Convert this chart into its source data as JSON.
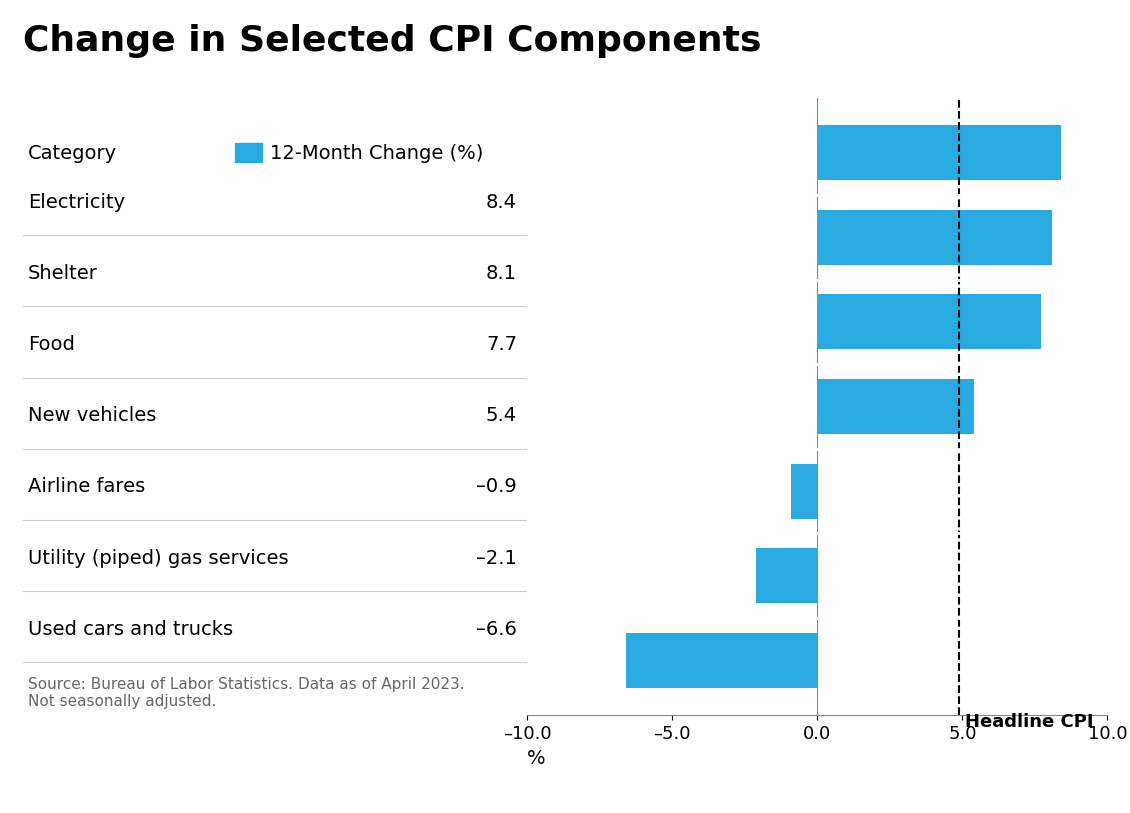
{
  "title": "Change in Selected CPI Components",
  "categories": [
    "Electricity",
    "Shelter",
    "Food",
    "New vehicles",
    "Airline fares",
    "Utility (piped) gas services",
    "Used cars and trucks"
  ],
  "values": [
    8.4,
    8.1,
    7.7,
    5.4,
    -0.9,
    -2.1,
    -6.6
  ],
  "bar_color": "#29ABE2",
  "headline_cpi": 4.9,
  "xlim": [
    -10.0,
    10.0
  ],
  "xticks": [
    -10.0,
    -5.0,
    0.0,
    5.0,
    10.0
  ],
  "xlabel": "%",
  "legend_label": "12-Month Change (%)",
  "legend_category_label": "Category",
  "source_text": "Source: Bureau of Labor Statistics. Data as of April 2023.\nNot seasonally adjusted.",
  "headline_label": "Headline CPI",
  "background_color": "#ffffff",
  "title_fontsize": 26,
  "label_fontsize": 14,
  "tick_fontsize": 13,
  "source_fontsize": 11,
  "bar_height": 0.65
}
